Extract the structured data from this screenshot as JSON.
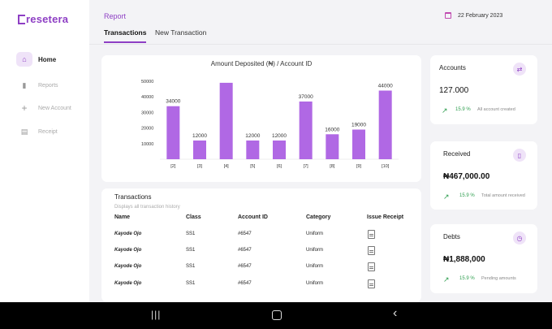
{
  "logo": {
    "text": "resetera"
  },
  "sidebar": {
    "items": [
      {
        "label": "Home",
        "icon": "home-icon"
      },
      {
        "label": "Reports",
        "icon": "bar-chart-icon"
      },
      {
        "label": "New Account",
        "icon": "plus-icon"
      },
      {
        "label": "Receipt",
        "icon": "document-icon"
      }
    ]
  },
  "header": {
    "title": "Report",
    "tabs": [
      {
        "label": "Transactions"
      },
      {
        "label": "New Transaction"
      }
    ],
    "date": "22 February 2023"
  },
  "chart_data": {
    "type": "bar",
    "title": "Amount Deposited (₦) / Account ID",
    "categories": [
      "[2]",
      "[3]",
      "[4]",
      "[5]",
      "[6]",
      "[7]",
      "[8]",
      "[9]",
      "[10]"
    ],
    "values": [
      34000,
      12000,
      49000,
      12000,
      12000,
      37000,
      16000,
      19000,
      44000
    ],
    "data_labels": [
      "34000",
      "12000",
      "",
      "12000",
      "12000",
      "37000",
      "16000",
      "19000",
      "44000"
    ],
    "yticks": [
      "50000",
      "40000",
      "30000",
      "20000",
      "10000"
    ],
    "ylim": [
      0,
      50000
    ],
    "bar_color": "#b068e4"
  },
  "transactions": {
    "title": "Transactions",
    "subtitle": "Displays all transaction history",
    "columns": [
      "Name",
      "Class",
      "Account ID",
      "Category",
      "Issue Receipt"
    ],
    "rows": [
      {
        "name": "Kayode Ojo",
        "class": "SS1",
        "account": "#6547",
        "category": "Uniform"
      },
      {
        "name": "Kayode Ojo",
        "class": "SS1",
        "account": "#6547",
        "category": "Uniform"
      },
      {
        "name": "Kayode Ojo",
        "class": "SS1",
        "account": "#6547",
        "category": "Uniform"
      },
      {
        "name": "Kayode Ojo",
        "class": "SS1",
        "account": "#6547",
        "category": "Uniform"
      }
    ]
  },
  "stats": [
    {
      "label": "Accounts",
      "value": "127.000",
      "pct": "15.9 %",
      "desc": "All account created",
      "icon": "user-swap-icon"
    },
    {
      "label": "Received",
      "value": "₦467,000.00",
      "pct": "15.9 %",
      "desc": "Total amount received",
      "icon": "clipboard-icon"
    },
    {
      "label": "Debts",
      "value": "₦1,888,000",
      "pct": "15.9 %",
      "desc": "Pending amounts",
      "icon": "clock-icon"
    }
  ],
  "colors": {
    "accent": "#8e3fc4",
    "positive": "#2e9e4f"
  }
}
